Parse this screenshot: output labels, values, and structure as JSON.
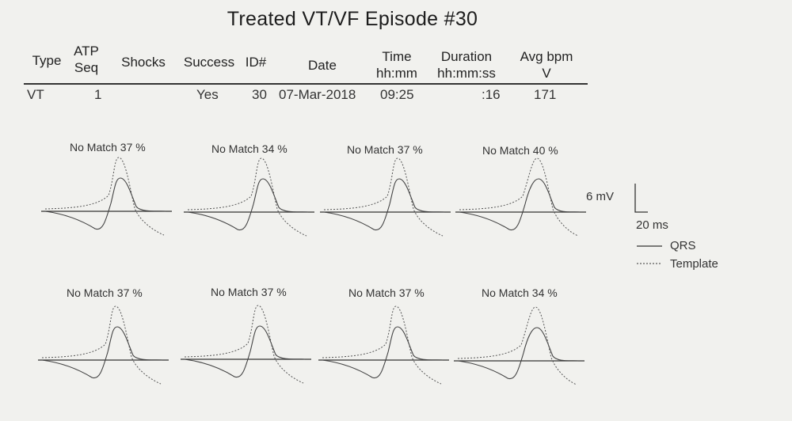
{
  "title": "Treated VT/VF Episode #30",
  "headers": {
    "type": [
      "Type"
    ],
    "atp_seq": [
      "ATP",
      "Seq"
    ],
    "shocks": [
      "Shocks"
    ],
    "success": [
      "Success"
    ],
    "id": [
      "ID#"
    ],
    "date": [
      "Date"
    ],
    "time": [
      "Time",
      "hh:mm"
    ],
    "duration": [
      "Duration",
      "hh:mm:ss"
    ],
    "avg_bpm": [
      "Avg bpm",
      "V"
    ]
  },
  "row": {
    "type": "VT",
    "atp_seq": "1",
    "shocks": "",
    "success": "Yes",
    "id": "30",
    "date": "07-Mar-2018",
    "time": "09:25",
    "duration": ":16",
    "avg_bpm": "171"
  },
  "matches": {
    "row1": [
      "No Match  37 %",
      "No Match  34 %",
      "No Match  37 %",
      "No Match  40 %"
    ],
    "row2": [
      "No Match  37 %",
      "No Match  37 %",
      "No Match  37 %",
      "No Match  34 %"
    ]
  },
  "scale": {
    "voltage": "6 mV",
    "time": "20 ms"
  },
  "legend": {
    "qrs": "QRS",
    "template": "Template"
  },
  "colors": {
    "ink": "#333333",
    "paper": "#f1f1ee"
  }
}
